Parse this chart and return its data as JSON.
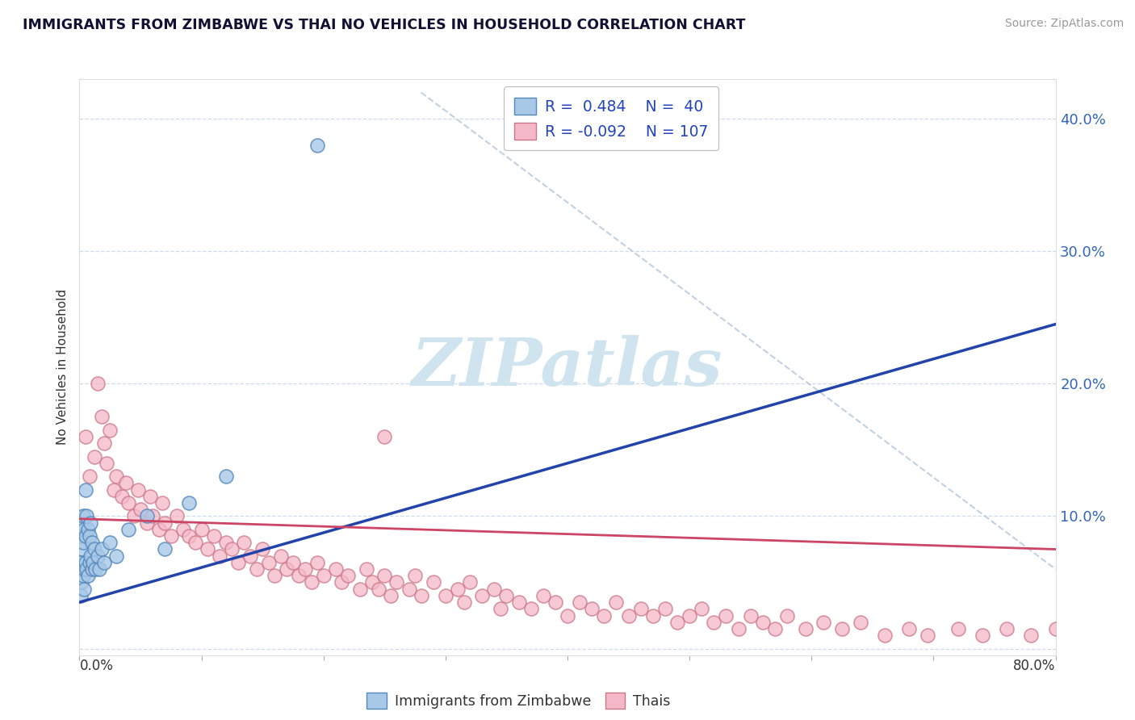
{
  "title": "IMMIGRANTS FROM ZIMBABWE VS THAI NO VEHICLES IN HOUSEHOLD CORRELATION CHART",
  "source": "Source: ZipAtlas.com",
  "ylabel": "No Vehicles in Household",
  "right_ytick_labels": [
    "",
    "10.0%",
    "20.0%",
    "30.0%",
    "40.0%"
  ],
  "right_ytick_vals": [
    0.0,
    0.1,
    0.2,
    0.3,
    0.4
  ],
  "xlim": [
    0.0,
    0.8
  ],
  "ylim": [
    -0.005,
    0.43
  ],
  "legend_line1": "R =  0.484    N =  40",
  "legend_line2": "R = -0.092    N = 107",
  "legend_label_blue": "Immigrants from Zimbabwe",
  "legend_label_pink": "Thais",
  "blue_color": "#A8C8E8",
  "pink_color": "#F5B8C8",
  "blue_edge": "#5588BB",
  "pink_edge": "#CC7788",
  "trend_blue": "#2244AA",
  "trend_pink": "#CC4466",
  "trend_gray": "#BBCCDD",
  "title_color": "#111133",
  "source_color": "#999999",
  "watermark_color": "#D0E4F0",
  "background_color": "#FFFFFF",
  "blue_scatter_x": [
    0.001,
    0.001,
    0.001,
    0.002,
    0.002,
    0.002,
    0.003,
    0.003,
    0.003,
    0.004,
    0.004,
    0.004,
    0.005,
    0.005,
    0.005,
    0.006,
    0.006,
    0.007,
    0.007,
    0.008,
    0.008,
    0.009,
    0.009,
    0.01,
    0.01,
    0.011,
    0.012,
    0.013,
    0.015,
    0.016,
    0.018,
    0.02,
    0.025,
    0.03,
    0.04,
    0.055,
    0.07,
    0.09,
    0.12,
    0.195
  ],
  "blue_scatter_y": [
    0.04,
    0.065,
    0.085,
    0.05,
    0.075,
    0.095,
    0.055,
    0.08,
    0.1,
    0.045,
    0.06,
    0.09,
    0.065,
    0.085,
    0.12,
    0.06,
    0.1,
    0.055,
    0.09,
    0.065,
    0.085,
    0.07,
    0.095,
    0.06,
    0.08,
    0.065,
    0.075,
    0.06,
    0.07,
    0.06,
    0.075,
    0.065,
    0.08,
    0.07,
    0.09,
    0.1,
    0.075,
    0.11,
    0.13,
    0.38
  ],
  "pink_scatter_x": [
    0.005,
    0.008,
    0.012,
    0.015,
    0.018,
    0.02,
    0.022,
    0.025,
    0.028,
    0.03,
    0.035,
    0.038,
    0.04,
    0.045,
    0.048,
    0.05,
    0.055,
    0.058,
    0.06,
    0.065,
    0.068,
    0.07,
    0.075,
    0.08,
    0.085,
    0.09,
    0.095,
    0.1,
    0.105,
    0.11,
    0.115,
    0.12,
    0.125,
    0.13,
    0.135,
    0.14,
    0.145,
    0.15,
    0.155,
    0.16,
    0.165,
    0.17,
    0.175,
    0.18,
    0.185,
    0.19,
    0.195,
    0.2,
    0.21,
    0.215,
    0.22,
    0.23,
    0.235,
    0.24,
    0.245,
    0.25,
    0.255,
    0.26,
    0.27,
    0.275,
    0.28,
    0.29,
    0.3,
    0.31,
    0.315,
    0.32,
    0.33,
    0.34,
    0.345,
    0.35,
    0.36,
    0.37,
    0.38,
    0.39,
    0.4,
    0.41,
    0.42,
    0.43,
    0.44,
    0.45,
    0.46,
    0.47,
    0.48,
    0.49,
    0.5,
    0.51,
    0.52,
    0.53,
    0.54,
    0.55,
    0.56,
    0.57,
    0.58,
    0.595,
    0.61,
    0.625,
    0.64,
    0.66,
    0.68,
    0.695,
    0.72,
    0.74,
    0.76,
    0.78,
    0.8,
    0.25,
    0.82
  ],
  "pink_scatter_y": [
    0.16,
    0.13,
    0.145,
    0.2,
    0.175,
    0.155,
    0.14,
    0.165,
    0.12,
    0.13,
    0.115,
    0.125,
    0.11,
    0.1,
    0.12,
    0.105,
    0.095,
    0.115,
    0.1,
    0.09,
    0.11,
    0.095,
    0.085,
    0.1,
    0.09,
    0.085,
    0.08,
    0.09,
    0.075,
    0.085,
    0.07,
    0.08,
    0.075,
    0.065,
    0.08,
    0.07,
    0.06,
    0.075,
    0.065,
    0.055,
    0.07,
    0.06,
    0.065,
    0.055,
    0.06,
    0.05,
    0.065,
    0.055,
    0.06,
    0.05,
    0.055,
    0.045,
    0.06,
    0.05,
    0.045,
    0.055,
    0.04,
    0.05,
    0.045,
    0.055,
    0.04,
    0.05,
    0.04,
    0.045,
    0.035,
    0.05,
    0.04,
    0.045,
    0.03,
    0.04,
    0.035,
    0.03,
    0.04,
    0.035,
    0.025,
    0.035,
    0.03,
    0.025,
    0.035,
    0.025,
    0.03,
    0.025,
    0.03,
    0.02,
    0.025,
    0.03,
    0.02,
    0.025,
    0.015,
    0.025,
    0.02,
    0.015,
    0.025,
    0.015,
    0.02,
    0.015,
    0.02,
    0.01,
    0.015,
    0.01,
    0.015,
    0.01,
    0.015,
    0.01,
    0.015,
    0.16,
    0.008
  ],
  "blue_trend_x": [
    0.0,
    0.8
  ],
  "blue_trend_y": [
    0.035,
    0.245
  ],
  "pink_trend_x": [
    0.0,
    0.8
  ],
  "pink_trend_y": [
    0.098,
    0.075
  ],
  "gray_trend_x": [
    0.28,
    0.8
  ],
  "gray_trend_y": [
    0.42,
    0.06
  ]
}
